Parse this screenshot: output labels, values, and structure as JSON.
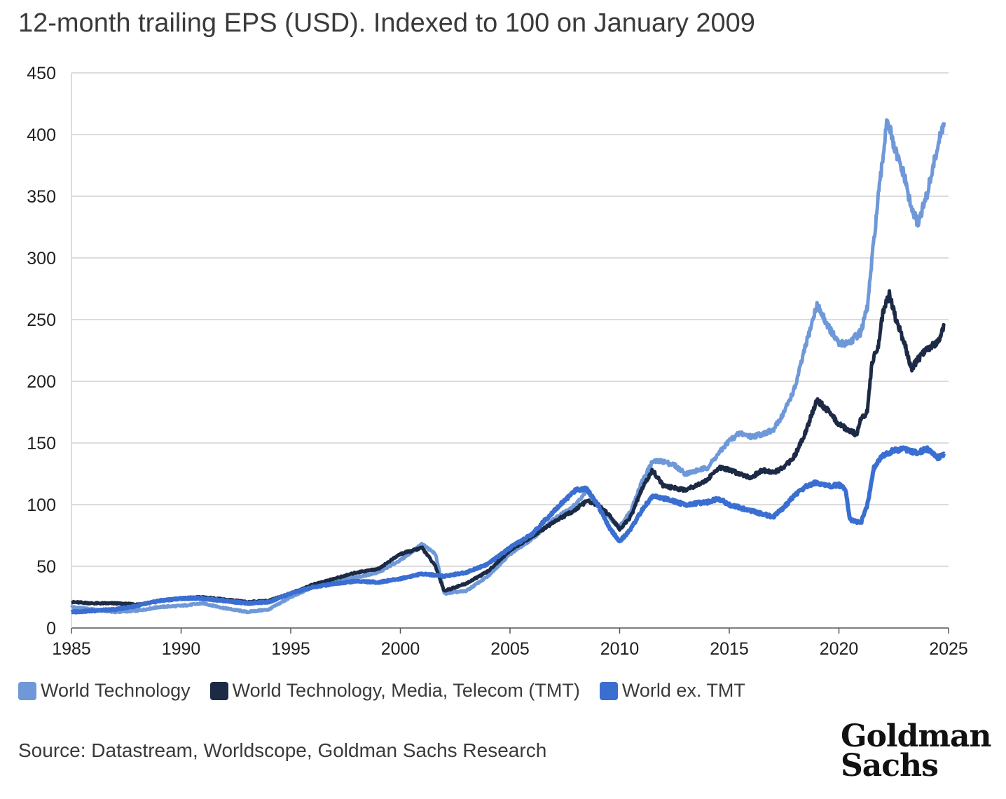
{
  "title": "12-month trailing EPS (USD). Indexed to 100 on January 2009",
  "source": "Source: Datastream, Worldscope, Goldman Sachs Research",
  "logo": {
    "line1": "Goldman",
    "line2": "Sachs"
  },
  "legend": [
    {
      "label": "World Technology",
      "color": "#6f98d8"
    },
    {
      "label": "World Technology, Media, Telecom (TMT)",
      "color": "#1d2a45"
    },
    {
      "label": "World ex. TMT",
      "color": "#3a6fd1"
    }
  ],
  "chart_data": {
    "type": "line",
    "title": "12-month trailing EPS (USD). Indexed to 100 on January 2009",
    "xlabel": "",
    "ylabel": "",
    "xlim": [
      1985,
      2025
    ],
    "ylim": [
      0,
      450
    ],
    "xticks": [
      1985,
      1990,
      1995,
      2000,
      2005,
      2010,
      2015,
      2020,
      2025
    ],
    "yticks": [
      0,
      50,
      100,
      150,
      200,
      250,
      300,
      350,
      400,
      450
    ],
    "grid": "horizontal",
    "legend_position": "bottom",
    "series": [
      {
        "name": "World Technology",
        "color": "#6f98d8",
        "points": [
          [
            1985,
            17
          ],
          [
            1986,
            15
          ],
          [
            1987,
            13
          ],
          [
            1988,
            14
          ],
          [
            1989,
            17
          ],
          [
            1990,
            18
          ],
          [
            1991,
            20
          ],
          [
            1992,
            16
          ],
          [
            1993,
            13
          ],
          [
            1994,
            15
          ],
          [
            1995,
            25
          ],
          [
            1996,
            33
          ],
          [
            1997,
            38
          ],
          [
            1998,
            41
          ],
          [
            1999,
            45
          ],
          [
            2000,
            55
          ],
          [
            2001,
            68
          ],
          [
            2001.6,
            60
          ],
          [
            2002,
            28
          ],
          [
            2003,
            30
          ],
          [
            2004,
            42
          ],
          [
            2005,
            60
          ],
          [
            2006,
            72
          ],
          [
            2007,
            88
          ],
          [
            2008,
            100
          ],
          [
            2008.5,
            112
          ],
          [
            2009,
            100
          ],
          [
            2009.5,
            90
          ],
          [
            2010,
            82
          ],
          [
            2010.5,
            95
          ],
          [
            2011,
            118
          ],
          [
            2011.5,
            135
          ],
          [
            2012,
            135
          ],
          [
            2012.5,
            132
          ],
          [
            2013,
            125
          ],
          [
            2014,
            130
          ],
          [
            2015,
            152
          ],
          [
            2015.5,
            158
          ],
          [
            2016,
            155
          ],
          [
            2017,
            160
          ],
          [
            2017.5,
            175
          ],
          [
            2018,
            195
          ],
          [
            2018.5,
            230
          ],
          [
            2019,
            262
          ],
          [
            2019.5,
            245
          ],
          [
            2020,
            230
          ],
          [
            2020.5,
            232
          ],
          [
            2021,
            240
          ],
          [
            2021.3,
            260
          ],
          [
            2021.6,
            315
          ],
          [
            2021.8,
            350
          ],
          [
            2022,
            380
          ],
          [
            2022.2,
            415
          ],
          [
            2022.5,
            390
          ],
          [
            2023,
            365
          ],
          [
            2023.3,
            340
          ],
          [
            2023.6,
            328
          ],
          [
            2024,
            350
          ],
          [
            2024.5,
            390
          ],
          [
            2024.8,
            410
          ]
        ]
      },
      {
        "name": "World Technology, Media, Telecom (TMT)",
        "color": "#1d2a45",
        "points": [
          [
            1985,
            21
          ],
          [
            1986,
            20
          ],
          [
            1987,
            20
          ],
          [
            1988,
            19
          ],
          [
            1989,
            22
          ],
          [
            1990,
            24
          ],
          [
            1991,
            25
          ],
          [
            1992,
            23
          ],
          [
            1993,
            21
          ],
          [
            1994,
            22
          ],
          [
            1995,
            28
          ],
          [
            1996,
            35
          ],
          [
            1997,
            40
          ],
          [
            1998,
            45
          ],
          [
            1999,
            48
          ],
          [
            2000,
            60
          ],
          [
            2001,
            65
          ],
          [
            2001.6,
            50
          ],
          [
            2002,
            30
          ],
          [
            2003,
            36
          ],
          [
            2004,
            46
          ],
          [
            2005,
            63
          ],
          [
            2006,
            74
          ],
          [
            2007,
            86
          ],
          [
            2008,
            96
          ],
          [
            2008.5,
            103
          ],
          [
            2009,
            100
          ],
          [
            2009.5,
            92
          ],
          [
            2010,
            80
          ],
          [
            2010.5,
            90
          ],
          [
            2011,
            112
          ],
          [
            2011.5,
            128
          ],
          [
            2012,
            115
          ],
          [
            2013,
            112
          ],
          [
            2014,
            120
          ],
          [
            2014.5,
            130
          ],
          [
            2015,
            128
          ],
          [
            2016,
            122
          ],
          [
            2016.5,
            128
          ],
          [
            2017,
            126
          ],
          [
            2017.5,
            130
          ],
          [
            2018,
            140
          ],
          [
            2018.5,
            160
          ],
          [
            2019,
            185
          ],
          [
            2019.5,
            176
          ],
          [
            2020,
            165
          ],
          [
            2020.5,
            160
          ],
          [
            2020.8,
            157
          ],
          [
            2021,
            170
          ],
          [
            2021.3,
            175
          ],
          [
            2021.5,
            215
          ],
          [
            2021.8,
            230
          ],
          [
            2022,
            255
          ],
          [
            2022.3,
            270
          ],
          [
            2022.6,
            250
          ],
          [
            2023,
            230
          ],
          [
            2023.3,
            210
          ],
          [
            2023.7,
            220
          ],
          [
            2024,
            225
          ],
          [
            2024.5,
            232
          ],
          [
            2024.8,
            245
          ]
        ]
      },
      {
        "name": "World ex. TMT",
        "color": "#3a6fd1",
        "points": [
          [
            1985,
            13
          ],
          [
            1986,
            14
          ],
          [
            1987,
            15
          ],
          [
            1988,
            18
          ],
          [
            1989,
            22
          ],
          [
            1990,
            24
          ],
          [
            1991,
            24
          ],
          [
            1992,
            22
          ],
          [
            1993,
            20
          ],
          [
            1994,
            21
          ],
          [
            1995,
            28
          ],
          [
            1996,
            33
          ],
          [
            1997,
            36
          ],
          [
            1998,
            38
          ],
          [
            1999,
            37
          ],
          [
            2000,
            40
          ],
          [
            2001,
            44
          ],
          [
            2002,
            42
          ],
          [
            2003,
            45
          ],
          [
            2004,
            52
          ],
          [
            2005,
            65
          ],
          [
            2006,
            76
          ],
          [
            2007,
            95
          ],
          [
            2008,
            112
          ],
          [
            2008.5,
            113
          ],
          [
            2009,
            100
          ],
          [
            2009.5,
            82
          ],
          [
            2010,
            70
          ],
          [
            2010.5,
            80
          ],
          [
            2011,
            95
          ],
          [
            2011.5,
            107
          ],
          [
            2012,
            105
          ],
          [
            2013,
            100
          ],
          [
            2014,
            102
          ],
          [
            2014.5,
            105
          ],
          [
            2015,
            100
          ],
          [
            2016,
            95
          ],
          [
            2017,
            90
          ],
          [
            2017.5,
            98
          ],
          [
            2018,
            108
          ],
          [
            2018.5,
            115
          ],
          [
            2019,
            118
          ],
          [
            2019.5,
            115
          ],
          [
            2020,
            116
          ],
          [
            2020.3,
            112
          ],
          [
            2020.5,
            88
          ],
          [
            2021,
            85
          ],
          [
            2021.3,
            100
          ],
          [
            2021.6,
            130
          ],
          [
            2022,
            140
          ],
          [
            2022.5,
            144
          ],
          [
            2023,
            145
          ],
          [
            2023.5,
            142
          ],
          [
            2024,
            145
          ],
          [
            2024.5,
            138
          ],
          [
            2024.8,
            141
          ]
        ]
      }
    ]
  }
}
